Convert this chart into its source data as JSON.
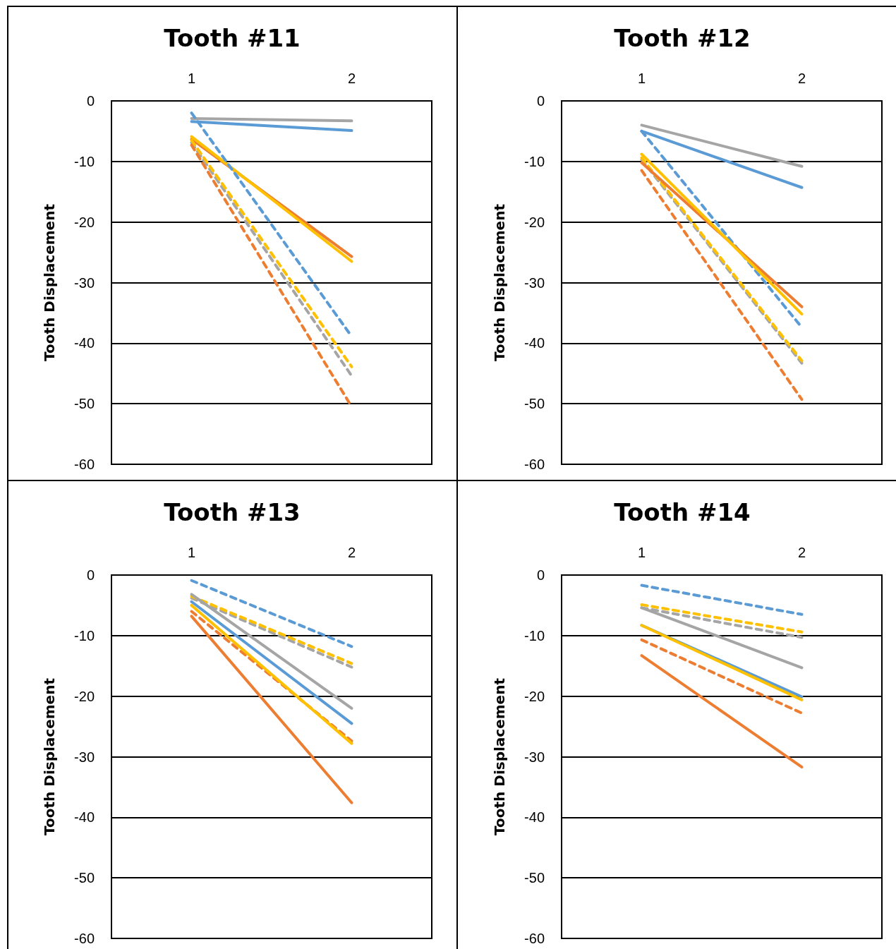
{
  "chart_data": [
    {
      "type": "line",
      "title": "Tooth #11",
      "ylabel": "Tooth Displacement",
      "categories": [
        "1",
        "2"
      ],
      "ylim": [
        -60,
        0
      ],
      "yticks": [
        0,
        -10,
        -20,
        -30,
        -40,
        -50,
        -60
      ],
      "grid": "y",
      "marker": "none",
      "series": [
        {
          "color": "#a5a5a5",
          "line_style": "solid",
          "values": [
            -2.9,
            -3.3
          ]
        },
        {
          "color": "#5b9bd5",
          "line_style": "solid",
          "values": [
            -3.4,
            -4.9
          ]
        },
        {
          "color": "#ed7d31",
          "line_style": "solid",
          "values": [
            -6.3,
            -25.7
          ]
        },
        {
          "color": "#ffc000",
          "line_style": "solid",
          "values": [
            -5.9,
            -26.5
          ]
        },
        {
          "color": "#5b9bd5",
          "line_style": "dashed",
          "values": [
            -2.0,
            -38.9
          ]
        },
        {
          "color": "#a5a5a5",
          "line_style": "dashed",
          "values": [
            -6.9,
            -45.4
          ]
        },
        {
          "color": "#ffc000",
          "line_style": "dashed",
          "values": [
            -6.5,
            -43.9
          ]
        },
        {
          "color": "#ed7d31",
          "line_style": "dashed",
          "values": [
            -7.3,
            -50.5
          ]
        }
      ]
    },
    {
      "type": "line",
      "title": "Tooth #12",
      "ylabel": "Tooth Displacement",
      "categories": [
        "1",
        "2"
      ],
      "ylim": [
        -60,
        0
      ],
      "yticks": [
        0,
        -10,
        -20,
        -30,
        -40,
        -50,
        -60
      ],
      "grid": "y",
      "marker": "none",
      "series": [
        {
          "color": "#a5a5a5",
          "line_style": "solid",
          "values": [
            -4.0,
            -10.8
          ]
        },
        {
          "color": "#5b9bd5",
          "line_style": "solid",
          "values": [
            -5.0,
            -14.3
          ]
        },
        {
          "color": "#5b9bd5",
          "line_style": "dashed",
          "values": [
            -5.0,
            -37.4
          ]
        },
        {
          "color": "#a5a5a5",
          "line_style": "dashed",
          "values": [
            -9.7,
            -43.3
          ]
        },
        {
          "color": "#ffc000",
          "line_style": "dashed",
          "values": [
            -9.4,
            -42.9
          ]
        },
        {
          "color": "#ed7d31",
          "line_style": "dashed",
          "values": [
            -11.5,
            -49.3
          ]
        },
        {
          "color": "#ed7d31",
          "line_style": "solid",
          "values": [
            -10.2,
            -34.0
          ]
        },
        {
          "color": "#ffc000",
          "line_style": "solid",
          "values": [
            -8.8,
            -35.2
          ]
        }
      ]
    },
    {
      "type": "line",
      "title": "Tooth #13",
      "ylabel": "Tooth Displacement",
      "categories": [
        "1",
        "2"
      ],
      "ylim": [
        -60,
        0
      ],
      "yticks": [
        0,
        -10,
        -20,
        -30,
        -40,
        -50,
        -60
      ],
      "grid": "y",
      "marker": "none",
      "series": [
        {
          "color": "#5b9bd5",
          "line_style": "dashed",
          "values": [
            -0.9,
            -11.8
          ]
        },
        {
          "color": "#a5a5a5",
          "line_style": "dashed",
          "values": [
            -3.8,
            -15.2
          ]
        },
        {
          "color": "#ffc000",
          "line_style": "dashed",
          "values": [
            -3.5,
            -14.6
          ]
        },
        {
          "color": "#a5a5a5",
          "line_style": "solid",
          "values": [
            -3.2,
            -22.0
          ]
        },
        {
          "color": "#5b9bd5",
          "line_style": "solid",
          "values": [
            -4.4,
            -24.5
          ]
        },
        {
          "color": "#ed7d31",
          "line_style": "dashed",
          "values": [
            -6.0,
            -27.4
          ]
        },
        {
          "color": "#ffc000",
          "line_style": "solid",
          "values": [
            -5.0,
            -27.8
          ]
        },
        {
          "color": "#ed7d31",
          "line_style": "solid",
          "values": [
            -6.8,
            -37.6
          ]
        }
      ]
    },
    {
      "type": "line",
      "title": "Tooth #14",
      "ylabel": "Tooth Displacement",
      "categories": [
        "1",
        "2"
      ],
      "ylim": [
        -60,
        0
      ],
      "yticks": [
        0,
        -10,
        -20,
        -30,
        -40,
        -50,
        -60
      ],
      "grid": "y",
      "marker": "none",
      "series": [
        {
          "color": "#5b9bd5",
          "line_style": "dashed",
          "values": [
            -1.7,
            -6.5
          ]
        },
        {
          "color": "#a5a5a5",
          "line_style": "dashed",
          "values": [
            -5.4,
            -10.3
          ]
        },
        {
          "color": "#ffc000",
          "line_style": "dashed",
          "values": [
            -4.9,
            -9.4
          ]
        },
        {
          "color": "#a5a5a5",
          "line_style": "solid",
          "values": [
            -5.4,
            -15.3
          ]
        },
        {
          "color": "#5b9bd5",
          "line_style": "solid",
          "values": [
            -8.3,
            -20.1
          ]
        },
        {
          "color": "#ffc000",
          "line_style": "solid",
          "values": [
            -8.3,
            -20.6
          ]
        },
        {
          "color": "#ed7d31",
          "line_style": "dashed",
          "values": [
            -10.7,
            -22.8
          ]
        },
        {
          "color": "#ed7d31",
          "line_style": "solid",
          "values": [
            -13.3,
            -31.7
          ]
        }
      ]
    }
  ]
}
